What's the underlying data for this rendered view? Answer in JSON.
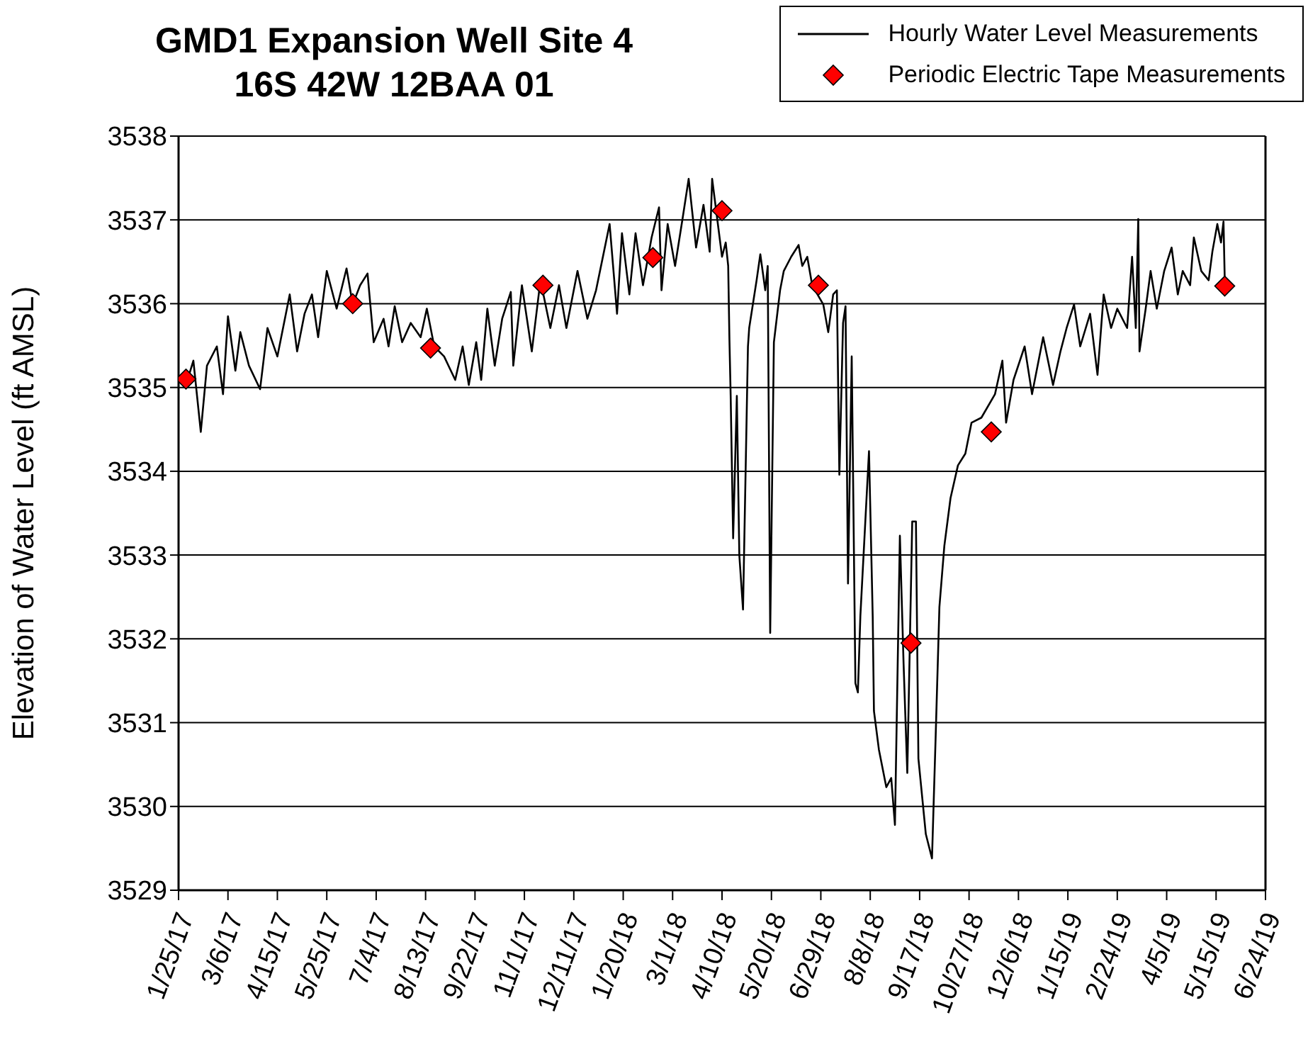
{
  "chart_data": {
    "type": "line",
    "title": "GMD1 Expansion Well Site 4\n16S 42W 12BAA 01",
    "ylabel": "Elevation of Water Level (ft AMSL)",
    "ylim": [
      3529,
      3538
    ],
    "yticks": [
      3529,
      3530,
      3531,
      3532,
      3533,
      3534,
      3535,
      3536,
      3537,
      3538
    ],
    "xlim": [
      "2017-01-25",
      "2019-06-24"
    ],
    "xticks": [
      {
        "value": "2017-01-25",
        "label": "1/25/17"
      },
      {
        "value": "2017-03-06",
        "label": "3/6/17"
      },
      {
        "value": "2017-04-15",
        "label": "4/15/17"
      },
      {
        "value": "2017-05-25",
        "label": "5/25/17"
      },
      {
        "value": "2017-07-04",
        "label": "7/4/17"
      },
      {
        "value": "2017-08-13",
        "label": "8/13/17"
      },
      {
        "value": "2017-09-22",
        "label": "9/22/17"
      },
      {
        "value": "2017-11-01",
        "label": "11/1/17"
      },
      {
        "value": "2017-12-11",
        "label": "12/11/17"
      },
      {
        "value": "2018-01-20",
        "label": "1/20/18"
      },
      {
        "value": "2018-03-01",
        "label": "3/1/18"
      },
      {
        "value": "2018-04-10",
        "label": "4/10/18"
      },
      {
        "value": "2018-05-20",
        "label": "5/20/18"
      },
      {
        "value": "2018-06-29",
        "label": "6/29/18"
      },
      {
        "value": "2018-08-08",
        "label": "8/8/18"
      },
      {
        "value": "2018-09-17",
        "label": "9/17/18"
      },
      {
        "value": "2018-10-27",
        "label": "10/27/18"
      },
      {
        "value": "2018-12-06",
        "label": "12/6/18"
      },
      {
        "value": "2019-01-15",
        "label": "1/15/19"
      },
      {
        "value": "2019-02-24",
        "label": "2/24/19"
      },
      {
        "value": "2019-04-05",
        "label": "4/5/19"
      },
      {
        "value": "2019-05-15",
        "label": "5/15/19"
      },
      {
        "value": "2019-06-24",
        "label": "6/24/19"
      }
    ],
    "grid": "y",
    "legend": "top right",
    "series": [
      {
        "name": "Hourly Water Level Measurements",
        "type": "line",
        "color": "#000000",
        "line_style": "solid",
        "marker": "none",
        "x": [
          "2017-01-31",
          "2017-02-06",
          "2017-02-12",
          "2017-02-17",
          "2017-02-25",
          "2017-03-02",
          "2017-03-06",
          "2017-03-12",
          "2017-03-16",
          "2017-03-23",
          "2017-04-01",
          "2017-04-07",
          "2017-04-15",
          "2017-04-25",
          "2017-05-01",
          "2017-05-07",
          "2017-05-13",
          "2017-05-18",
          "2017-05-25",
          "2017-06-02",
          "2017-06-10",
          "2017-06-15",
          "2017-06-21",
          "2017-06-27",
          "2017-07-02",
          "2017-07-10",
          "2017-07-14",
          "2017-07-19",
          "2017-07-25",
          "2017-08-01",
          "2017-08-09",
          "2017-08-14",
          "2017-08-20",
          "2017-08-28",
          "2017-09-06",
          "2017-09-12",
          "2017-09-17",
          "2017-09-23",
          "2017-09-27",
          "2017-10-02",
          "2017-10-08",
          "2017-10-14",
          "2017-10-21",
          "2017-10-23",
          "2017-10-30",
          "2017-11-07",
          "2017-11-14",
          "2017-11-22",
          "2017-11-29",
          "2017-12-05",
          "2017-12-14",
          "2017-12-22",
          "2017-12-29",
          "2018-01-09",
          "2018-01-15",
          "2018-01-19",
          "2018-01-25",
          "2018-01-30",
          "2018-02-05",
          "2018-02-12",
          "2018-02-18",
          "2018-02-20",
          "2018-02-25",
          "2018-03-03",
          "2018-03-09",
          "2018-03-14",
          "2018-03-20",
          "2018-03-26",
          "2018-03-31",
          "2018-04-02",
          "2018-04-10",
          "2018-04-13",
          "2018-04-15",
          "2018-04-16",
          "2018-04-17",
          "2018-04-19",
          "2018-04-22",
          "2018-04-24",
          "2018-04-27",
          "2018-05-01",
          "2018-05-02",
          "2018-05-08",
          "2018-05-11",
          "2018-05-15",
          "2018-05-17",
          "2018-05-19",
          "2018-05-22",
          "2018-05-27",
          "2018-05-30",
          "2018-06-05",
          "2018-06-11",
          "2018-06-14",
          "2018-06-18",
          "2018-06-22",
          "2018-07-01",
          "2018-07-05",
          "2018-07-09",
          "2018-07-12",
          "2018-07-14",
          "2018-07-17",
          "2018-07-19",
          "2018-07-21",
          "2018-07-24",
          "2018-07-27",
          "2018-07-29",
          "2018-07-31",
          "2018-08-07",
          "2018-08-10",
          "2018-08-11",
          "2018-08-15",
          "2018-08-21",
          "2018-08-25",
          "2018-08-28",
          "2018-09-01",
          "2018-09-04",
          "2018-09-07",
          "2018-09-11",
          "2018-09-14",
          "2018-09-16",
          "2018-09-22",
          "2018-09-27",
          "2018-09-30",
          "2018-10-03",
          "2018-10-07",
          "2018-10-12",
          "2018-10-18",
          "2018-10-24",
          "2018-10-29",
          "2018-11-06",
          "2018-11-17",
          "2018-11-23",
          "2018-11-26",
          "2018-12-02",
          "2018-12-11",
          "2018-12-17",
          "2018-12-26",
          "2019-01-03",
          "2019-01-09",
          "2019-01-14",
          "2019-01-20",
          "2019-01-25",
          "2019-02-02",
          "2019-02-08",
          "2019-02-13",
          "2019-02-19",
          "2019-02-24",
          "2019-03-04",
          "2019-03-08",
          "2019-03-11",
          "2019-03-13",
          "2019-03-14",
          "2019-03-19",
          "2019-03-23",
          "2019-03-28",
          "2019-04-03",
          "2019-04-09",
          "2019-04-14",
          "2019-04-18",
          "2019-04-24",
          "2019-04-27",
          "2019-05-03",
          "2019-05-09",
          "2019-05-12",
          "2019-05-16",
          "2019-05-19",
          "2019-05-21",
          "2019-05-22"
        ],
        "values": [
          3535.03,
          3535.32,
          3534.47,
          3535.26,
          3535.49,
          3534.92,
          3535.85,
          3535.2,
          3535.66,
          3535.26,
          3534.98,
          3535.71,
          3535.37,
          3536.11,
          3535.43,
          3535.88,
          3536.11,
          3535.6,
          3536.39,
          3535.94,
          3536.42,
          3535.99,
          3536.22,
          3536.36,
          3535.54,
          3535.82,
          3535.49,
          3535.97,
          3535.54,
          3535.77,
          3535.6,
          3535.94,
          3535.49,
          3535.37,
          3535.09,
          3535.49,
          3535.03,
          3535.54,
          3535.09,
          3535.94,
          3535.26,
          3535.82,
          3536.14,
          3535.26,
          3536.22,
          3535.43,
          3536.28,
          3535.71,
          3536.22,
          3535.71,
          3536.39,
          3535.82,
          3536.16,
          3536.95,
          3535.88,
          3536.84,
          3536.11,
          3536.84,
          3536.22,
          3536.79,
          3537.15,
          3536.16,
          3536.95,
          3536.45,
          3537.01,
          3537.49,
          3536.67,
          3537.18,
          3536.62,
          3537.49,
          3536.56,
          3536.73,
          3536.45,
          3535.57,
          3534.9,
          3533.2,
          3534.9,
          3533.0,
          3532.35,
          3535.49,
          3535.71,
          3536.28,
          3536.59,
          3536.16,
          3536.45,
          3532.07,
          3535.54,
          3536.16,
          3536.39,
          3536.56,
          3536.7,
          3536.45,
          3536.56,
          3536.22,
          3535.99,
          3535.66,
          3536.11,
          3536.16,
          3533.96,
          3535.77,
          3535.97,
          3532.66,
          3535.37,
          3531.47,
          3531.36,
          3532.27,
          3534.24,
          3532.27,
          3531.14,
          3530.68,
          3530.23,
          3530.34,
          3529.78,
          3533.23,
          3531.7,
          3530.4,
          3533.4,
          3533.4,
          3530.57,
          3529.67,
          3529.38,
          3530.85,
          3532.38,
          3533.11,
          3533.68,
          3534.07,
          3534.21,
          3534.58,
          3534.64,
          3534.92,
          3535.32,
          3534.58,
          3535.09,
          3535.49,
          3534.92,
          3535.6,
          3535.03,
          3535.43,
          3535.71,
          3535.99,
          3535.49,
          3535.88,
          3535.15,
          3536.11,
          3535.71,
          3535.94,
          3535.71,
          3536.56,
          3535.71,
          3537.01,
          3535.43,
          3535.94,
          3536.39,
          3535.94,
          3536.39,
          3536.67,
          3536.11,
          3536.39,
          3536.22,
          3536.79,
          3536.39,
          3536.28,
          3536.62,
          3536.95,
          3536.73,
          3536.98,
          3536.3
        ]
      },
      {
        "name": "Periodic Electric Tape Measurements",
        "type": "scatter",
        "color": "#ff0000",
        "marker": "diamond",
        "x": [
          "2017-01-31",
          "2017-06-15",
          "2017-08-17",
          "2017-11-16",
          "2018-02-13",
          "2018-04-10",
          "2018-06-27",
          "2018-09-10",
          "2018-11-14",
          "2019-05-22"
        ],
        "values": [
          3535.1,
          3536.0,
          3535.47,
          3536.22,
          3536.55,
          3537.11,
          3536.22,
          3531.95,
          3534.47,
          3536.21
        ]
      }
    ]
  }
}
